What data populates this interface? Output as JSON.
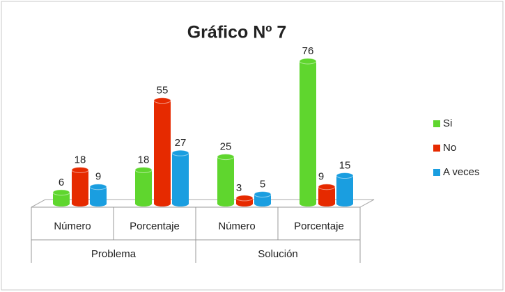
{
  "chart_data": {
    "type": "bar",
    "title": "Gráfico Nº 7",
    "categories": [
      "Número",
      "Porcentaje",
      "Número",
      "Porcentaje"
    ],
    "category_groups": [
      "Problema",
      "Solución"
    ],
    "series": [
      {
        "name": "Si",
        "color": "#5fd62e",
        "values": [
          6,
          18,
          25,
          76
        ]
      },
      {
        "name": "No",
        "color": "#e62a00",
        "values": [
          18,
          55,
          3,
          9
        ]
      },
      {
        "name": "A veces",
        "color": "#1a9ee0",
        "values": [
          9,
          27,
          5,
          15
        ]
      }
    ],
    "legend": "right"
  }
}
